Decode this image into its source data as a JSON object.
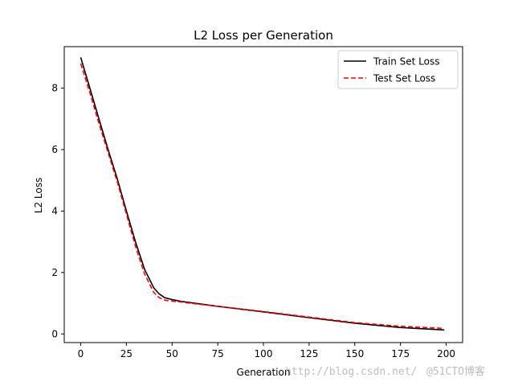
{
  "chart_data": {
    "type": "line",
    "title": "L2 Loss per Generation",
    "xlabel": "Generation",
    "ylabel": "L2 Loss",
    "xlim": [
      -9,
      209
    ],
    "ylim": [
      -0.28,
      9.35
    ],
    "xticks": [
      0,
      25,
      50,
      75,
      100,
      125,
      150,
      175,
      200
    ],
    "yticks": [
      0,
      2,
      4,
      6,
      8
    ],
    "grid": false,
    "legend_position": "top-right",
    "series": [
      {
        "name": "Train Set Loss",
        "color": "#000000",
        "style": "solid",
        "x": [
          0,
          5,
          10,
          15,
          20,
          25,
          30,
          35,
          40,
          43,
          46,
          50,
          55,
          60,
          75,
          100,
          125,
          150,
          175,
          199
        ],
        "y": [
          9.0,
          8.0,
          7.0,
          6.0,
          5.05,
          4.0,
          3.0,
          2.1,
          1.5,
          1.3,
          1.18,
          1.12,
          1.06,
          1.02,
          0.9,
          0.72,
          0.53,
          0.35,
          0.21,
          0.13
        ]
      },
      {
        "name": "Test Set Loss",
        "color": "#ff0000",
        "style": "dashed",
        "x": [
          0,
          5,
          10,
          15,
          20,
          25,
          30,
          35,
          40,
          43,
          46,
          50,
          55,
          60,
          75,
          100,
          125,
          150,
          175,
          199
        ],
        "y": [
          8.8,
          7.85,
          6.85,
          5.9,
          4.95,
          3.9,
          2.85,
          1.95,
          1.35,
          1.18,
          1.1,
          1.07,
          1.04,
          1.0,
          0.9,
          0.73,
          0.55,
          0.37,
          0.25,
          0.18
        ]
      }
    ]
  },
  "watermark": {
    "text": "http://blog.csdn.net/",
    "text2": "@51CTO博客"
  }
}
